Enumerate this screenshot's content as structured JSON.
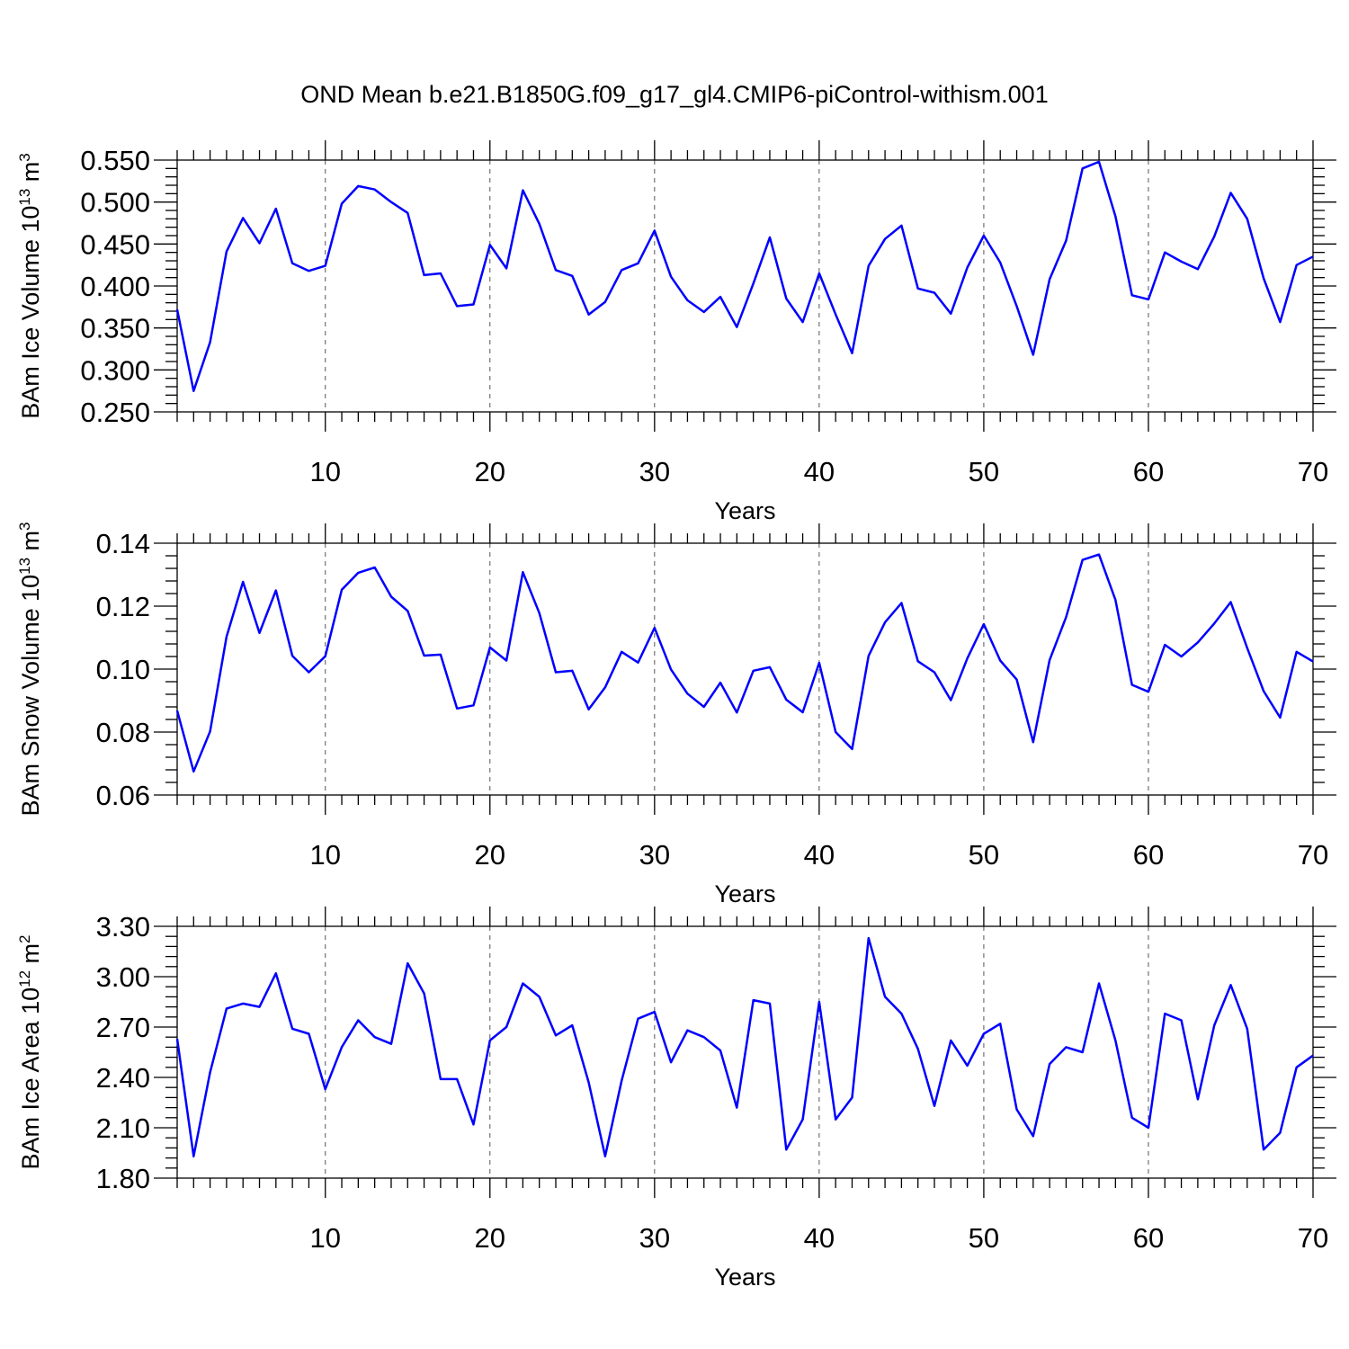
{
  "figure": {
    "title": "OND Mean b.e21.B1850G.f09_g17_gl4.CMIP6-piControl-withism.001"
  },
  "colors": {
    "line": "#0000ff",
    "axis": "#000000",
    "grid": "#555555"
  },
  "chart_data": [
    {
      "type": "line",
      "title": "",
      "ylabel_main": "BAm Ice Volume 10",
      "ylabel_exp": "13",
      "ylabel_unit": "m",
      "ylabel_unit_exp": "3",
      "xlabel": "Years",
      "xlim": [
        1,
        70
      ],
      "ylim": [
        0.25,
        0.55
      ],
      "yticks": [
        0.25,
        0.3,
        0.35,
        0.4,
        0.45,
        0.5,
        0.55
      ],
      "ytick_labels": [
        "0.250",
        "0.300",
        "0.350",
        "0.400",
        "0.450",
        "0.500",
        "0.550"
      ],
      "xticks": [
        10,
        20,
        30,
        40,
        50,
        60,
        70
      ],
      "xtick_labels": [
        "10",
        "20",
        "30",
        "40",
        "50",
        "60",
        "70"
      ],
      "grid": "vertical dashed at major x ticks",
      "series": [
        {
          "name": "BAm Ice Volume",
          "values": [
            0.372,
            0.275,
            0.333,
            0.441,
            0.481,
            0.451,
            0.492,
            0.427,
            0.418,
            0.424,
            0.498,
            0.519,
            0.515,
            0.5,
            0.487,
            0.413,
            0.415,
            0.376,
            0.378,
            0.449,
            0.421,
            0.514,
            0.474,
            0.419,
            0.412,
            0.366,
            0.381,
            0.419,
            0.427,
            0.466,
            0.411,
            0.383,
            0.369,
            0.387,
            0.351,
            0.403,
            0.458,
            0.385,
            0.357,
            0.415,
            0.366,
            0.32,
            0.424,
            0.456,
            0.472,
            0.397,
            0.392,
            0.367,
            0.422,
            0.46,
            0.428,
            0.376,
            0.318,
            0.408,
            0.454,
            0.54,
            0.548,
            0.483,
            0.389,
            0.384,
            0.44,
            0.429,
            0.42,
            0.459,
            0.511,
            0.48,
            0.409,
            0.357,
            0.425,
            0.435
          ]
        }
      ]
    },
    {
      "type": "line",
      "title": "",
      "ylabel_main": "BAm Snow Volume 10",
      "ylabel_exp": "13",
      "ylabel_unit": "m",
      "ylabel_unit_exp": "3",
      "xlabel": "Years",
      "xlim": [
        1,
        70
      ],
      "ylim": [
        0.06,
        0.14
      ],
      "yticks": [
        0.06,
        0.08,
        0.1,
        0.12,
        0.14
      ],
      "ytick_labels": [
        "0.06",
        "0.08",
        "0.10",
        "0.12",
        "0.14"
      ],
      "xticks": [
        10,
        20,
        30,
        40,
        50,
        60,
        70
      ],
      "xtick_labels": [
        "10",
        "20",
        "30",
        "40",
        "50",
        "60",
        "70"
      ],
      "grid": "vertical dashed at major x ticks",
      "series": [
        {
          "name": "BAm Snow Volume",
          "values": [
            0.0868,
            0.0675,
            0.0802,
            0.1103,
            0.1277,
            0.1115,
            0.125,
            0.1042,
            0.099,
            0.1041,
            0.1252,
            0.1306,
            0.1323,
            0.123,
            0.1185,
            0.1043,
            0.1046,
            0.0875,
            0.0885,
            0.1069,
            0.1027,
            0.1308,
            0.1178,
            0.099,
            0.0995,
            0.0872,
            0.0942,
            0.1055,
            0.1021,
            0.1131,
            0.0999,
            0.0922,
            0.088,
            0.0957,
            0.0862,
            0.0995,
            0.1006,
            0.0903,
            0.0863,
            0.102,
            0.08,
            0.0746,
            0.1042,
            0.1149,
            0.121,
            0.1025,
            0.099,
            0.0901,
            0.1034,
            0.1143,
            0.1027,
            0.0967,
            0.0768,
            0.1029,
            0.1165,
            0.1347,
            0.1364,
            0.122,
            0.095,
            0.0928,
            0.1077,
            0.104,
            0.1085,
            0.1145,
            0.1213,
            0.1067,
            0.093,
            0.0846,
            0.1055,
            0.1024
          ]
        }
      ]
    },
    {
      "type": "line",
      "title": "",
      "ylabel_main": "BAm Ice Area 10",
      "ylabel_exp": "12",
      "ylabel_unit": "m",
      "ylabel_unit_exp": "2",
      "xlabel": "Years",
      "xlim": [
        1,
        70
      ],
      "ylim": [
        1.8,
        3.3
      ],
      "yticks": [
        1.8,
        2.1,
        2.4,
        2.7,
        3.0,
        3.3
      ],
      "ytick_labels": [
        "1.80",
        "2.10",
        "2.40",
        "2.70",
        "3.00",
        "3.30"
      ],
      "xticks": [
        10,
        20,
        30,
        40,
        50,
        60,
        70
      ],
      "xtick_labels": [
        "10",
        "20",
        "30",
        "40",
        "50",
        "60",
        "70"
      ],
      "grid": "vertical dashed at major x ticks",
      "series": [
        {
          "name": "BAm Ice Area",
          "values": [
            2.63,
            1.93,
            2.43,
            2.81,
            2.84,
            2.82,
            3.02,
            2.69,
            2.66,
            2.33,
            2.58,
            2.74,
            2.64,
            2.6,
            3.08,
            2.9,
            2.39,
            2.39,
            2.12,
            2.62,
            2.7,
            2.96,
            2.88,
            2.65,
            2.71,
            2.37,
            1.93,
            2.38,
            2.75,
            2.79,
            2.49,
            2.68,
            2.64,
            2.56,
            2.22,
            2.86,
            2.84,
            1.97,
            2.15,
            2.85,
            2.15,
            2.28,
            3.23,
            2.88,
            2.78,
            2.57,
            2.23,
            2.62,
            2.47,
            2.66,
            2.72,
            2.21,
            2.05,
            2.48,
            2.58,
            2.55,
            2.96,
            2.62,
            2.16,
            2.1,
            2.78,
            2.74,
            2.27,
            2.71,
            2.95,
            2.69,
            1.97,
            2.07,
            2.46,
            2.53
          ]
        }
      ]
    }
  ]
}
